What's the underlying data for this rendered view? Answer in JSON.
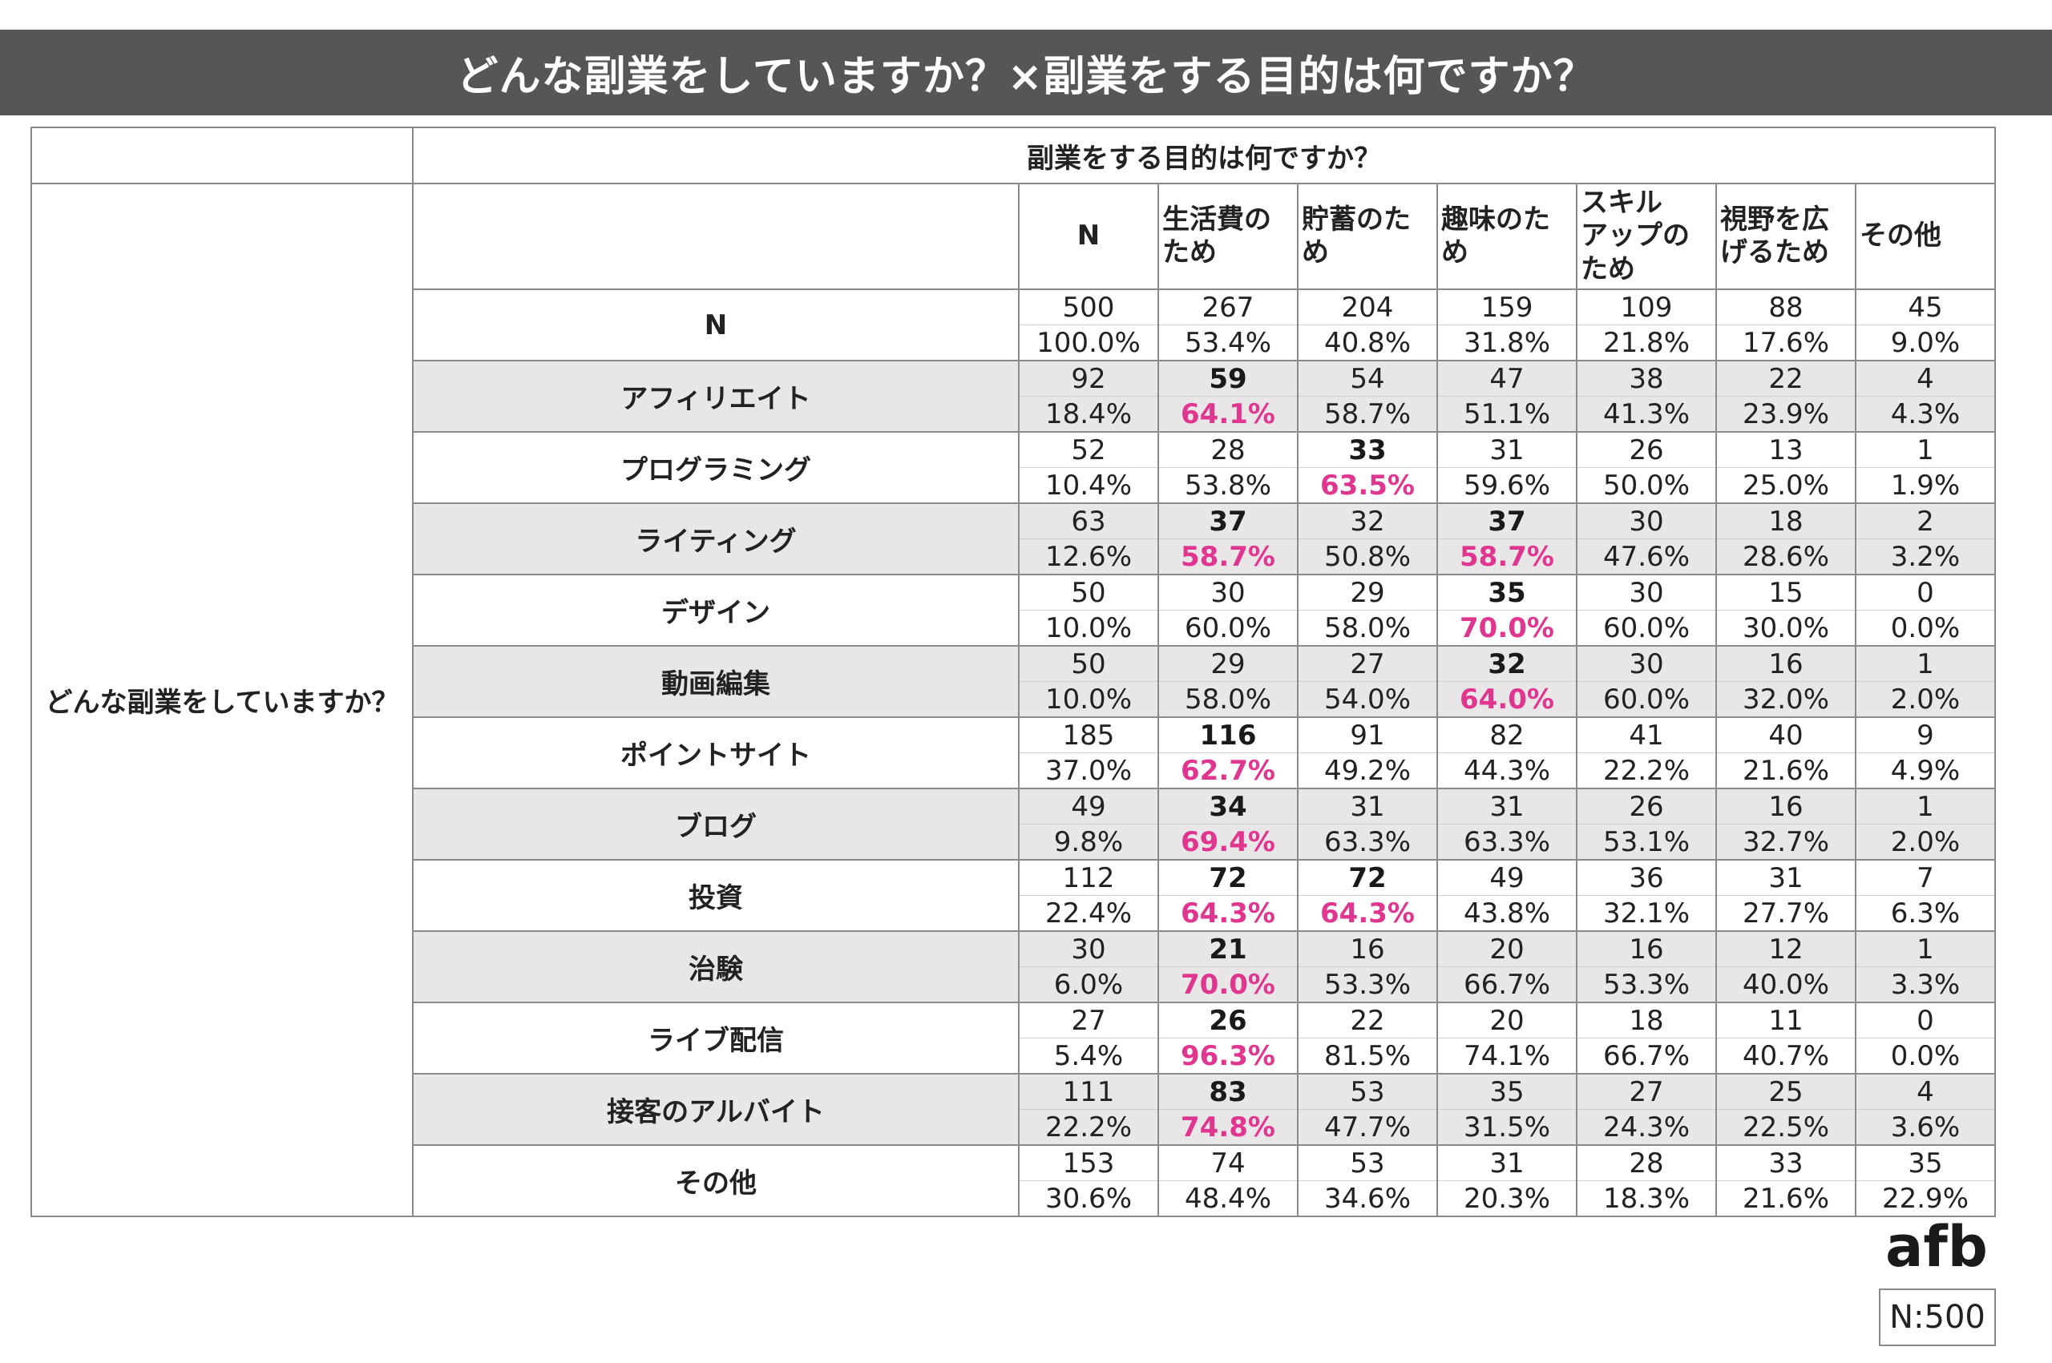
{
  "title": "どんな副業をしていますか？×副業をする目的は何ですか？",
  "chart_data": {
    "type": "table",
    "column_header": "副業をする目的は何ですか？",
    "row_header": "どんな副業をしていますか？",
    "columns": [
      "N",
      "生活費のため",
      "貯蓄のため",
      "趣味のため",
      "スキルアップのため",
      "視野を広げるため",
      "その他"
    ],
    "column_display": [
      "N",
      "生活費の\nため",
      "貯蓄のた\nめ",
      "趣味のた\nめ",
      "スキル\nアップの\nため",
      "視野を広\nげるため",
      "その他"
    ],
    "rows": [
      {
        "label": "N",
        "counts": [
          500,
          267,
          204,
          159,
          109,
          88,
          45
        ],
        "percents": [
          "100.0%",
          "53.4%",
          "40.8%",
          "31.8%",
          "21.8%",
          "17.6%",
          "9.0%"
        ],
        "highlight": []
      },
      {
        "label": "アフィリエイト",
        "counts": [
          92,
          59,
          54,
          47,
          38,
          22,
          4
        ],
        "percents": [
          "18.4%",
          "64.1%",
          "58.7%",
          "51.1%",
          "41.3%",
          "23.9%",
          "4.3%"
        ],
        "highlight": [
          1
        ]
      },
      {
        "label": "プログラミング",
        "counts": [
          52,
          28,
          33,
          31,
          26,
          13,
          1
        ],
        "percents": [
          "10.4%",
          "53.8%",
          "63.5%",
          "59.6%",
          "50.0%",
          "25.0%",
          "1.9%"
        ],
        "highlight": [
          2
        ]
      },
      {
        "label": "ライティング",
        "counts": [
          63,
          37,
          32,
          37,
          30,
          18,
          2
        ],
        "percents": [
          "12.6%",
          "58.7%",
          "50.8%",
          "58.7%",
          "47.6%",
          "28.6%",
          "3.2%"
        ],
        "highlight": [
          1,
          3
        ]
      },
      {
        "label": "デザイン",
        "counts": [
          50,
          30,
          29,
          35,
          30,
          15,
          0
        ],
        "percents": [
          "10.0%",
          "60.0%",
          "58.0%",
          "70.0%",
          "60.0%",
          "30.0%",
          "0.0%"
        ],
        "highlight": [
          3
        ]
      },
      {
        "label": "動画編集",
        "counts": [
          50,
          29,
          27,
          32,
          30,
          16,
          1
        ],
        "percents": [
          "10.0%",
          "58.0%",
          "54.0%",
          "64.0%",
          "60.0%",
          "32.0%",
          "2.0%"
        ],
        "highlight": [
          3
        ]
      },
      {
        "label": "ポイントサイト",
        "counts": [
          185,
          116,
          91,
          82,
          41,
          40,
          9
        ],
        "percents": [
          "37.0%",
          "62.7%",
          "49.2%",
          "44.3%",
          "22.2%",
          "21.6%",
          "4.9%"
        ],
        "highlight": [
          1
        ]
      },
      {
        "label": "ブログ",
        "counts": [
          49,
          34,
          31,
          31,
          26,
          16,
          1
        ],
        "percents": [
          "9.8%",
          "69.4%",
          "63.3%",
          "63.3%",
          "53.1%",
          "32.7%",
          "2.0%"
        ],
        "highlight": [
          1
        ]
      },
      {
        "label": "投資",
        "counts": [
          112,
          72,
          72,
          49,
          36,
          31,
          7
        ],
        "percents": [
          "22.4%",
          "64.3%",
          "64.3%",
          "43.8%",
          "32.1%",
          "27.7%",
          "6.3%"
        ],
        "highlight": [
          1,
          2
        ]
      },
      {
        "label": "治験",
        "counts": [
          30,
          21,
          16,
          20,
          16,
          12,
          1
        ],
        "percents": [
          "6.0%",
          "70.0%",
          "53.3%",
          "66.7%",
          "53.3%",
          "40.0%",
          "3.3%"
        ],
        "highlight": [
          1
        ]
      },
      {
        "label": "ライブ配信",
        "counts": [
          27,
          26,
          22,
          20,
          18,
          11,
          0
        ],
        "percents": [
          "5.4%",
          "96.3%",
          "81.5%",
          "74.1%",
          "66.7%",
          "40.7%",
          "0.0%"
        ],
        "highlight": [
          1
        ]
      },
      {
        "label": "接客のアルバイト",
        "counts": [
          111,
          83,
          53,
          35,
          27,
          25,
          4
        ],
        "percents": [
          "22.2%",
          "74.8%",
          "47.7%",
          "31.5%",
          "24.3%",
          "22.5%",
          "3.6%"
        ],
        "highlight": [
          1
        ]
      },
      {
        "label": "その他",
        "counts": [
          153,
          74,
          53,
          31,
          28,
          33,
          35
        ],
        "percents": [
          "30.6%",
          "48.4%",
          "34.6%",
          "20.3%",
          "18.3%",
          "21.6%",
          "22.9%"
        ],
        "highlight": []
      }
    ],
    "shaded_row_indices": [
      1,
      3,
      5,
      7,
      9,
      11
    ],
    "highlight_color": "#e0368f",
    "shade_color": "#e9e6e7"
  },
  "logo": {
    "text": "afb",
    "icon": "afb-logo-icon"
  },
  "sample_size": "N:500",
  "colors": {
    "title_bg": "#565656",
    "title_text": "#ffffff",
    "border": "#8a8a8a"
  }
}
